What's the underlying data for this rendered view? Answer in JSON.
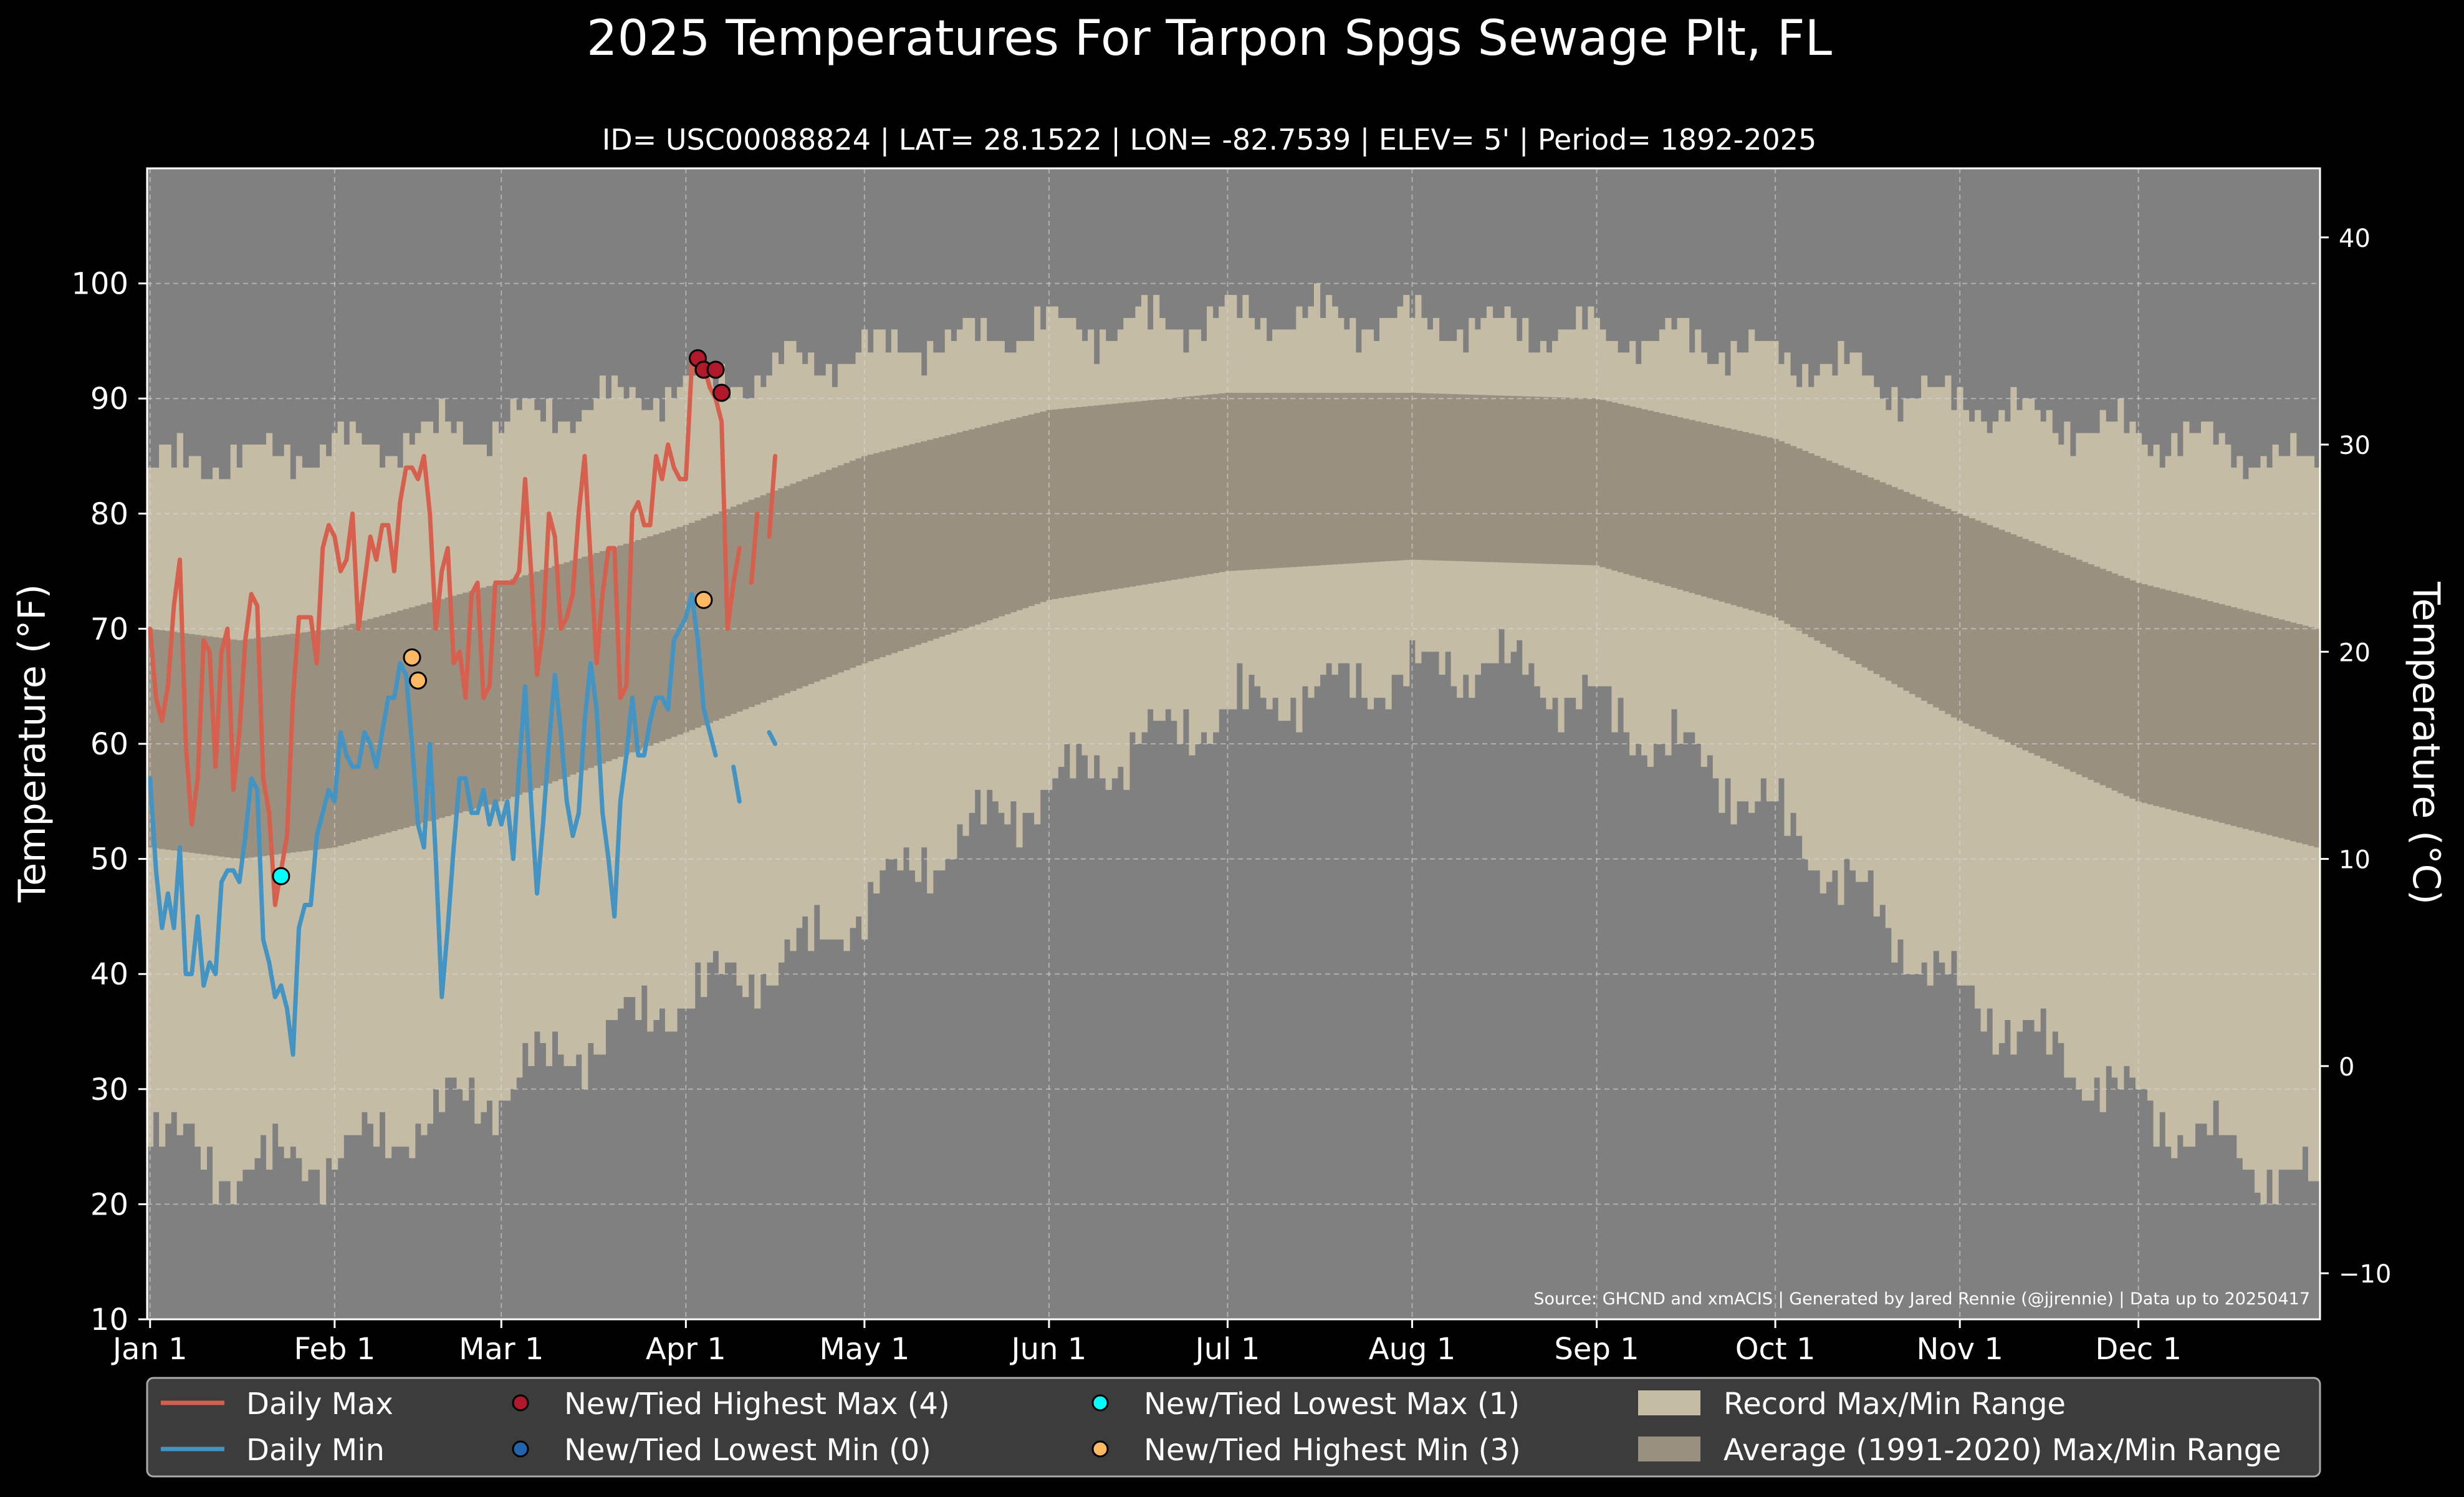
{
  "chart_data": {
    "type": "line",
    "title": "2025 Temperatures For Tarpon Spgs Sewage Plt, FL",
    "subtitle": "ID= USC00088824 | LAT= 28.1522 | LON= -82.7539 | ELEV= 5' | Period= 1892-2025",
    "ylabel": "Temperature ($^\\circ$F)",
    "y2label": "Temperature ($^\\circ$C)",
    "ylim": [
      10,
      110
    ],
    "y_ticks": [
      10,
      20,
      30,
      40,
      50,
      60,
      70,
      80,
      90,
      100
    ],
    "y2_ticks": [
      -10,
      0,
      10,
      20,
      30,
      40
    ],
    "x_ticks": [
      {
        "day": 0,
        "label": "Jan 1"
      },
      {
        "day": 31,
        "label": "Feb 1"
      },
      {
        "day": 59,
        "label": "Mar 1"
      },
      {
        "day": 90,
        "label": "Apr 1"
      },
      {
        "day": 120,
        "label": "May 1"
      },
      {
        "day": 151,
        "label": "Jun 1"
      },
      {
        "day": 181,
        "label": "Jul 1"
      },
      {
        "day": 212,
        "label": "Aug 1"
      },
      {
        "day": 243,
        "label": "Sep 1"
      },
      {
        "day": 273,
        "label": "Oct 1"
      },
      {
        "day": 304,
        "label": "Nov 1"
      },
      {
        "day": 334,
        "label": "Dec 1"
      }
    ],
    "grid": true,
    "source": "Source: GHCND and xmACIS | Generated by Jared Rennie (@jjrennie) | Data up to 20250417",
    "colors": {
      "background": "#000000",
      "plot_bg": "#808080",
      "record_range": "#c5bca6",
      "normal_range": "#9a9080",
      "max_line": "#d6604d",
      "min_line": "#4393c3",
      "rec_high_max": "#b2182b",
      "rec_low_min": "#2166ac",
      "rec_low_max": "#00ffff",
      "rec_high_min": "#fdb863"
    },
    "record_max_anchors": [
      [
        0,
        84
      ],
      [
        20,
        85
      ],
      [
        40,
        86
      ],
      [
        60,
        88
      ],
      [
        80,
        90
      ],
      [
        100,
        92
      ],
      [
        120,
        94
      ],
      [
        150,
        96
      ],
      [
        180,
        97
      ],
      [
        200,
        97
      ],
      [
        230,
        96
      ],
      [
        260,
        95
      ],
      [
        280,
        93
      ],
      [
        300,
        90
      ],
      [
        320,
        88
      ],
      [
        345,
        86
      ],
      [
        364,
        84
      ]
    ],
    "record_min_anchors": [
      [
        0,
        28
      ],
      [
        10,
        23
      ],
      [
        30,
        24
      ],
      [
        50,
        28
      ],
      [
        70,
        33
      ],
      [
        90,
        38
      ],
      [
        110,
        42
      ],
      [
        130,
        50
      ],
      [
        150,
        56
      ],
      [
        170,
        61
      ],
      [
        190,
        64
      ],
      [
        210,
        66
      ],
      [
        225,
        67
      ],
      [
        240,
        64
      ],
      [
        255,
        60
      ],
      [
        270,
        55
      ],
      [
        285,
        48
      ],
      [
        300,
        40
      ],
      [
        320,
        33
      ],
      [
        340,
        27
      ],
      [
        364,
        21
      ]
    ],
    "normal_max_anchors": [
      [
        0,
        70
      ],
      [
        15,
        69
      ],
      [
        31,
        70
      ],
      [
        59,
        74
      ],
      [
        90,
        79
      ],
      [
        120,
        85
      ],
      [
        151,
        89
      ],
      [
        181,
        90.5
      ],
      [
        212,
        90.5
      ],
      [
        243,
        90
      ],
      [
        273,
        86.5
      ],
      [
        304,
        80
      ],
      [
        334,
        74
      ],
      [
        364,
        70
      ]
    ],
    "normal_min_anchors": [
      [
        0,
        51
      ],
      [
        15,
        50
      ],
      [
        31,
        51
      ],
      [
        59,
        55
      ],
      [
        90,
        61
      ],
      [
        120,
        67
      ],
      [
        151,
        72.5
      ],
      [
        181,
        75
      ],
      [
        212,
        76
      ],
      [
        243,
        75.5
      ],
      [
        273,
        71
      ],
      [
        304,
        62
      ],
      [
        334,
        55
      ],
      [
        364,
        51
      ]
    ],
    "series": [
      {
        "name": "Daily Max",
        "values": [
          70,
          64,
          62,
          65,
          72,
          76,
          60,
          53,
          57,
          69,
          68,
          58,
          68,
          70,
          56,
          61,
          69,
          73,
          72,
          57,
          54,
          46,
          49,
          52,
          64,
          71,
          71,
          71,
          67,
          77,
          79,
          78,
          75,
          76,
          80,
          70,
          74,
          78,
          76,
          79,
          79,
          75,
          81,
          84,
          84,
          83,
          85,
          80,
          70,
          75,
          77,
          67,
          68,
          64,
          73,
          74,
          64,
          65,
          74,
          74,
          74,
          74,
          75,
          83,
          75,
          66,
          70,
          80,
          78,
          70,
          71,
          73,
          80,
          85,
          76,
          67,
          73,
          77,
          77,
          64,
          65,
          80,
          81,
          79,
          79,
          85,
          83,
          86,
          84,
          83,
          83,
          93,
          93,
          93,
          91,
          90,
          88,
          70,
          74,
          77,
          null,
          74,
          80,
          null,
          78,
          85
        ]
      },
      {
        "name": "Daily Min",
        "values": [
          57,
          49,
          44,
          47,
          44,
          51,
          40,
          40,
          45,
          39,
          41,
          40,
          48,
          49,
          49,
          48,
          52,
          57,
          56,
          43,
          41,
          38,
          39,
          37,
          33,
          44,
          46,
          46,
          52,
          54,
          56,
          55,
          61,
          59,
          58,
          58,
          61,
          60,
          58,
          61,
          64,
          64,
          67,
          66,
          60,
          53,
          51,
          60,
          50,
          38,
          44,
          51,
          57,
          57,
          54,
          54,
          56,
          53,
          55,
          53,
          55,
          50,
          58,
          65,
          55,
          47,
          53,
          60,
          66,
          61,
          55,
          52,
          54,
          62,
          67,
          63,
          54,
          50,
          45,
          55,
          59,
          64,
          59,
          59,
          62,
          64,
          64,
          63,
          69,
          70,
          71,
          73,
          69,
          63,
          61,
          59,
          null,
          null,
          58,
          55,
          null,
          null,
          null,
          null,
          61,
          60
        ]
      }
    ],
    "record_points": {
      "new_tied_highest_max": [
        [
          92,
          93.5
        ],
        [
          93,
          92.5
        ],
        [
          95,
          92.5
        ],
        [
          96,
          90.5
        ]
      ],
      "new_tied_lowest_min": [],
      "new_tied_lowest_max": [
        [
          22,
          48.5
        ]
      ],
      "new_tied_highest_min": [
        [
          44,
          67.5
        ],
        [
          45,
          65.5
        ],
        [
          93,
          72.5
        ]
      ]
    },
    "legend": {
      "placement": "bottom",
      "items": [
        {
          "label": "Daily Max",
          "kind": "line",
          "color": "#d6604d"
        },
        {
          "label": "New/Tied Highest Max (4)",
          "kind": "dot",
          "color": "#b2182b"
        },
        {
          "label": "New/Tied Lowest Max (1)",
          "kind": "dot",
          "color": "#00ffff"
        },
        {
          "label": "Record Max/Min Range",
          "kind": "patch",
          "color": "#c5bca6"
        },
        {
          "label": "Daily Min",
          "kind": "line",
          "color": "#4393c3"
        },
        {
          "label": "New/Tied Lowest Min (0)",
          "kind": "dot",
          "color": "#2166ac"
        },
        {
          "label": "New/Tied Highest Min (3)",
          "kind": "dot",
          "color": "#fdb863"
        },
        {
          "label": "Average (1991-2020) Max/Min Range",
          "kind": "patch",
          "color": "#9a9080"
        }
      ]
    }
  }
}
